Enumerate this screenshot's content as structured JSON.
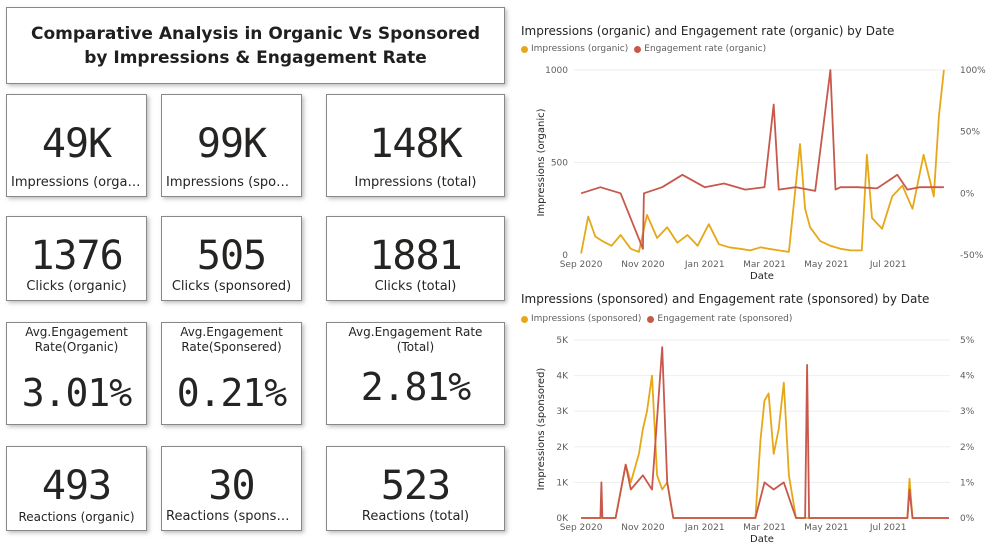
{
  "title": "Comparative Analysis in Organic Vs Sponsored by Impressions & Engagement Rate",
  "kpis": {
    "impr_org": {
      "value": "49K",
      "label": "Impressions (organ..."
    },
    "impr_spon": {
      "value": "99K",
      "label": "Impressions (sponso..."
    },
    "impr_total": {
      "value": "148K",
      "label": "Impressions (total)"
    },
    "clicks_org": {
      "value": "1376",
      "label": "Clicks (organic)"
    },
    "clicks_spon": {
      "value": "505",
      "label": "Clicks (sponsored)"
    },
    "clicks_total": {
      "value": "1881",
      "label": "Clicks (total)"
    },
    "eng_org": {
      "value": "3.01%",
      "label": "Avg.Engagement Rate(Organic)"
    },
    "eng_spon": {
      "value": "0.21%",
      "label": "Avg.Engagement Rate(Sponsered)"
    },
    "eng_total": {
      "value": "2.81%",
      "label": "Avg.Engagement Rate (Total)"
    },
    "react_org": {
      "value": "493",
      "label": "Reactions (organic)"
    },
    "react_spon": {
      "value": "30",
      "label": "Reactions (sponsor..."
    },
    "react_total": {
      "value": "523",
      "label": "Reactions (total)"
    }
  },
  "colors": {
    "impressions": "#e6a817",
    "engagement": "#c8584b"
  },
  "chart_data": [
    {
      "type": "line",
      "title": "Impressions (organic) and Engagement rate (organic) by Date",
      "xlabel": "Date",
      "ylabel": "Impressions (organic)",
      "x_ticks": [
        "Sep 2020",
        "Nov 2020",
        "Jan 2021",
        "Mar 2021",
        "May 2021",
        "Jul 2021"
      ],
      "y_ticks": [
        "0",
        "500",
        "1000"
      ],
      "ylim": [
        0,
        1200
      ],
      "y2_ticks": [
        "100%",
        "50%",
        "0%",
        "-50%"
      ],
      "y2lim": [
        -50,
        100
      ],
      "series": [
        {
          "name": "Impressions (organic)",
          "axis": "left",
          "x": [
            "2020-09-01",
            "2020-09-08",
            "2020-09-15",
            "2020-09-22",
            "2020-10-01",
            "2020-10-10",
            "2020-10-20",
            "2020-10-28",
            "2020-11-05",
            "2020-11-15",
            "2020-11-25",
            "2020-12-05",
            "2020-12-15",
            "2020-12-25",
            "2021-01-05",
            "2021-01-15",
            "2021-01-25",
            "2021-02-05",
            "2021-02-15",
            "2021-02-25",
            "2021-03-05",
            "2021-03-15",
            "2021-03-25",
            "2021-04-05",
            "2021-04-10",
            "2021-04-15",
            "2021-04-25",
            "2021-05-05",
            "2021-05-15",
            "2021-05-25",
            "2021-06-05",
            "2021-06-10",
            "2021-06-15",
            "2021-06-25",
            "2021-07-05",
            "2021-07-15",
            "2021-07-25",
            "2021-08-05",
            "2021-08-15",
            "2021-08-20",
            "2021-08-25"
          ],
          "y": [
            10,
            250,
            120,
            90,
            60,
            130,
            40,
            20,
            260,
            110,
            180,
            80,
            130,
            60,
            200,
            70,
            50,
            40,
            30,
            50,
            40,
            30,
            20,
            720,
            300,
            180,
            90,
            60,
            40,
            30,
            30,
            650,
            240,
            170,
            380,
            450,
            300,
            650,
            380,
            900,
            1200
          ]
        },
        {
          "name": "Engagement rate (organic)",
          "axis": "right",
          "x": [
            "2020-09-01",
            "2020-09-20",
            "2020-10-10",
            "2020-11-01",
            "2020-11-02",
            "2020-11-20",
            "2020-12-10",
            "2021-01-01",
            "2021-01-20",
            "2021-02-10",
            "2021-03-01",
            "2021-03-10",
            "2021-03-15",
            "2021-04-01",
            "2021-04-20",
            "2021-05-05",
            "2021-05-10",
            "2021-05-15",
            "2021-06-01",
            "2021-06-20",
            "2021-07-10",
            "2021-07-20",
            "2021-08-01",
            "2021-08-25"
          ],
          "y": [
            0,
            5,
            0,
            -45,
            0,
            5,
            15,
            5,
            8,
            3,
            5,
            72,
            3,
            5,
            2,
            100,
            3,
            5,
            5,
            4,
            15,
            3,
            5,
            5
          ]
        }
      ]
    },
    {
      "type": "line",
      "title": "Impressions (sponsored) and Engagement rate (sponsored) by Date",
      "xlabel": "Date",
      "ylabel": "Impressions (sponsored)",
      "x_ticks": [
        "Sep 2020",
        "Nov 2020",
        "Jan 2021",
        "Mar 2021",
        "May 2021",
        "Jul 2021"
      ],
      "y_ticks": [
        "0K",
        "1K",
        "2K",
        "3K",
        "4K",
        "5K"
      ],
      "ylim": [
        0,
        5000
      ],
      "y2_ticks": [
        "5%",
        "4%",
        "3%",
        "2%",
        "1%",
        "0%"
      ],
      "y2lim": [
        0,
        5
      ],
      "series": [
        {
          "name": "Impressions (sponsored)",
          "axis": "left",
          "x": [
            "2020-09-01",
            "2020-10-05",
            "2020-10-15",
            "2020-10-20",
            "2020-10-28",
            "2020-11-01",
            "2020-11-05",
            "2020-11-10",
            "2020-11-15",
            "2020-11-20",
            "2020-11-25",
            "2020-12-01",
            "2021-02-20",
            "2021-02-25",
            "2021-03-01",
            "2021-03-05",
            "2021-03-10",
            "2021-03-15",
            "2021-03-20",
            "2021-03-25",
            "2021-04-01",
            "2021-07-20",
            "2021-07-22",
            "2021-07-25",
            "2021-08-30"
          ],
          "y": [
            0,
            0,
            1500,
            1000,
            1800,
            2500,
            3000,
            4000,
            1200,
            800,
            1000,
            0,
            0,
            2200,
            3300,
            3500,
            1800,
            2500,
            3800,
            1200,
            0,
            0,
            1100,
            0,
            0
          ]
        },
        {
          "name": "Engagement rate (sponsored)",
          "axis": "right",
          "x": [
            "2020-09-01",
            "2020-09-20",
            "2020-09-21",
            "2020-09-22",
            "2020-10-05",
            "2020-10-15",
            "2020-10-20",
            "2020-11-01",
            "2020-11-10",
            "2020-11-20",
            "2020-11-25",
            "2020-12-01",
            "2021-02-20",
            "2021-03-01",
            "2021-03-10",
            "2021-03-20",
            "2021-04-01",
            "2021-04-10",
            "2021-04-12",
            "2021-04-14",
            "2021-07-20",
            "2021-07-22",
            "2021-07-25",
            "2021-08-30"
          ],
          "y": [
            0,
            0,
            1,
            0,
            0,
            1.5,
            0.8,
            1.2,
            0.8,
            4.8,
            1,
            0,
            0,
            1,
            0.8,
            1,
            0,
            0,
            4.3,
            0,
            0,
            0.8,
            0,
            0
          ]
        }
      ]
    }
  ]
}
